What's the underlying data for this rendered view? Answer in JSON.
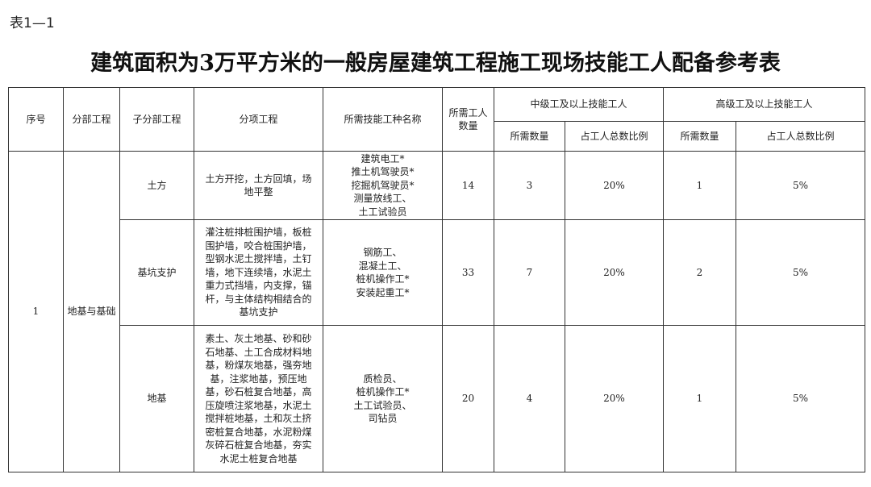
{
  "doc": {
    "label": "表1—1",
    "title": "建筑面积为3万平方米的一般房屋建筑工程施工现场技能工人配备参考表"
  },
  "headers": {
    "seq": "序号",
    "division": "分部工程",
    "subdivision": "子分部工程",
    "item": "分项工程",
    "trades": "所需技能工种名称",
    "workers": "所需工人\n数量",
    "mid_group": "中级工及以上技能工人",
    "mid_count": "所需数量",
    "mid_ratio": "占工人总数比例",
    "high_group": "高级工及以上技能工人",
    "high_count": "所需数量",
    "high_ratio": "占工人总数比例"
  },
  "group": {
    "seq": "1",
    "division": "地基与基础"
  },
  "rows": [
    {
      "subdivision": "土方",
      "item": "土方开挖，土方回填，场\n地平整",
      "trades": "建筑电工*\n推土机驾驶员*\n挖掘机驾驶员*\n测量放线工、\n土工试验员",
      "workers": "14",
      "mid_count": "3",
      "mid_ratio": "20%",
      "high_count": "1",
      "high_ratio": "5%"
    },
    {
      "subdivision": "基坑支护",
      "item": "灌注桩排桩围护墙，板桩\n围护墙，咬合桩围护墙，\n型钢水泥土搅拌墙，土钉\n墙，地下连续墙，水泥土\n重力式挡墙，内支撑，锚\n杆，与主体结构相结合的\n基坑支护",
      "trades": "钢筋工、\n混凝土工、\n桩机操作工*\n安装起重工*",
      "workers": "33",
      "mid_count": "7",
      "mid_ratio": "20%",
      "high_count": "2",
      "high_ratio": "5%"
    },
    {
      "subdivision": "地基",
      "item": "素土、灰土地基、砂和砂\n石地基、土工合成材料地\n基，粉煤灰地基，强夯地\n基，注浆地基，预压地\n基，砂石桩复合地基，高\n压旋喷注浆地基，水泥土\n搅拌桩地基，土和灰土挤\n密桩复合地基，水泥粉煤\n灰碎石桩复合地基，夯实\n水泥土桩复合地基",
      "trades": "质检员、\n桩机操作工*\n土工试验员、\n司钻员",
      "workers": "20",
      "mid_count": "4",
      "mid_ratio": "20%",
      "high_count": "1",
      "high_ratio": "5%"
    }
  ]
}
